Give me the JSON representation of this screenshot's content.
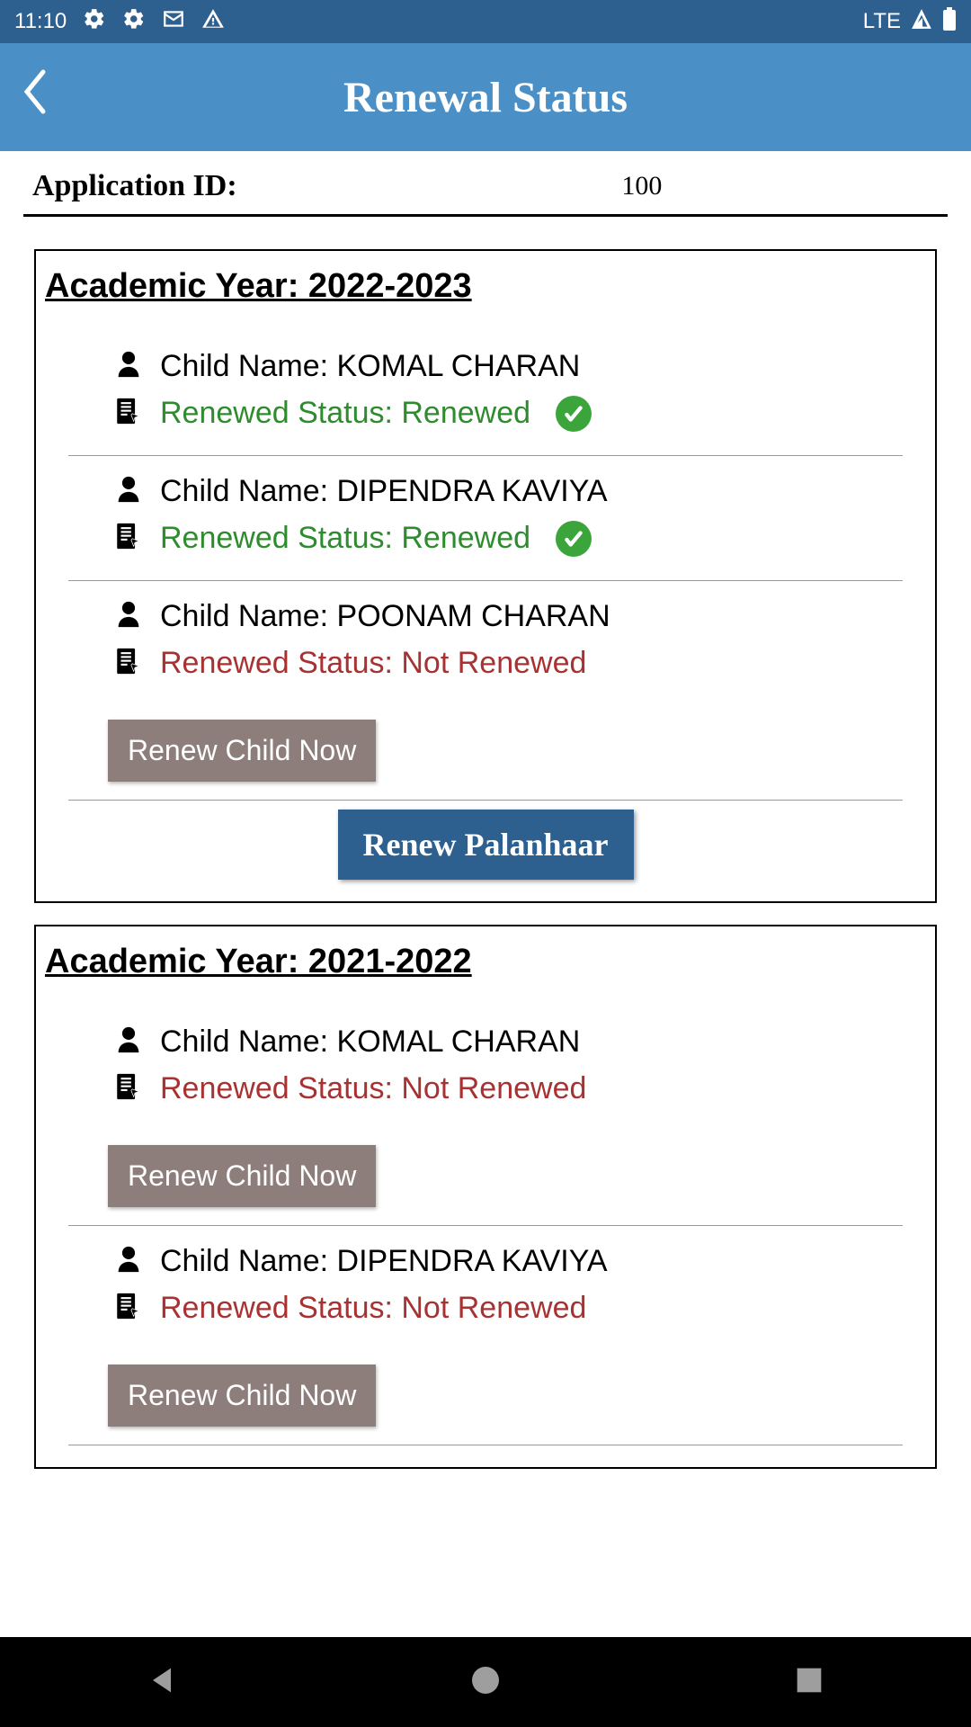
{
  "statusbar": {
    "time": "11:10",
    "network": "LTE"
  },
  "header": {
    "title": "Renewal Status"
  },
  "application": {
    "label": "Application ID:",
    "value": "100"
  },
  "buttons": {
    "renew_child": "Renew Child Now",
    "renew_palanhaar": "Renew Palanhaar"
  },
  "labels": {
    "child_name_prefix": "Child Name: ",
    "status_prefix": "Renewed Status: "
  },
  "colors": {
    "status_bar_bg": "#2d5f8f",
    "header_bg": "#4a90c7",
    "renewed_text": "#2e8b2e",
    "not_renewed_text": "#a83232",
    "check_bg": "#3ba53b",
    "renew_child_btn": "#8d7e7b",
    "renew_palanhaar_btn": "#2d5f8f"
  },
  "years": [
    {
      "title": "Academic Year: 2022-2023",
      "children": [
        {
          "name": "KOMAL CHARAN",
          "status": "Renewed",
          "renewed": true
        },
        {
          "name": "DIPENDRA KAVIYA",
          "status": "Renewed",
          "renewed": true
        },
        {
          "name": "POONAM CHARAN",
          "status": "Not Renewed",
          "renewed": false
        }
      ],
      "show_palanhaar": true
    },
    {
      "title": "Academic Year: 2021-2022",
      "children": [
        {
          "name": "KOMAL CHARAN",
          "status": "Not Renewed",
          "renewed": false
        },
        {
          "name": "DIPENDRA KAVIYA",
          "status": "Not Renewed",
          "renewed": false
        }
      ],
      "show_palanhaar": false
    }
  ]
}
